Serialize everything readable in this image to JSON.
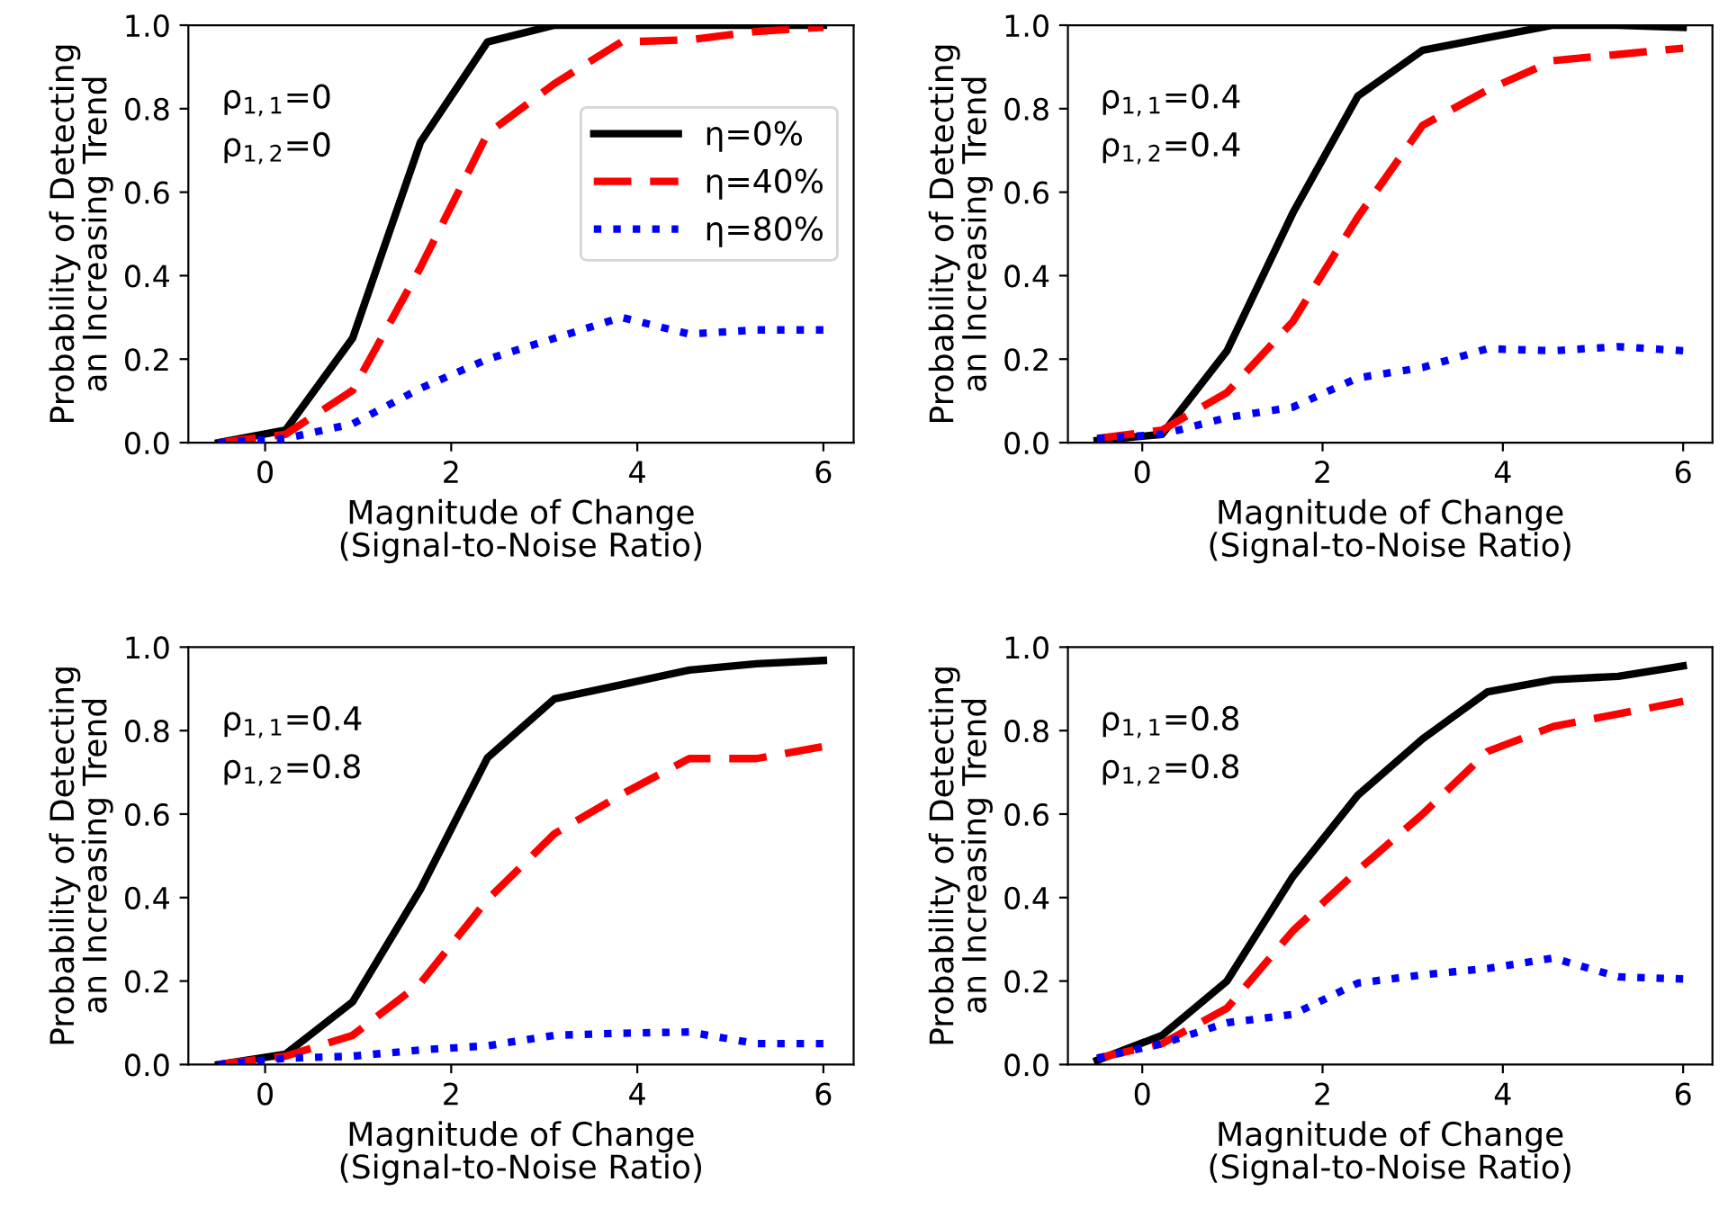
{
  "chart_data": [
    {
      "type": "line",
      "xlabel": "Magnitude of Change\n(Signal-to-Noise Ratio)",
      "ylabel": "Probability of Detecting\nan Increasing Trend",
      "x": [
        -0.5,
        0.22,
        0.94,
        1.67,
        2.39,
        3.11,
        3.83,
        4.56,
        5.28,
        6.0
      ],
      "xlim": [
        -0.825,
        6.325
      ],
      "ylim": [
        0,
        1
      ],
      "xticks": [
        0,
        2,
        4,
        6
      ],
      "yticks": [
        {
          "value": 0,
          "label": "0.0"
        },
        {
          "value": 0.2,
          "label": "0.2"
        },
        {
          "value": 0.4,
          "label": "0.4"
        },
        {
          "value": 0.6,
          "label": "0.6"
        },
        {
          "value": 0.8,
          "label": "0.8"
        },
        {
          "value": 1,
          "label": "1.0"
        }
      ],
      "annotations": [
        "ρ$_{1,1}$=0",
        "ρ$_{1,2}$=0"
      ],
      "legend": "right",
      "grid": false,
      "series": [
        {
          "name": "η=0%",
          "color": "#000000",
          "line_style": "solid",
          "values": [
            0,
            0.03,
            0.25,
            0.72,
            0.96,
            1.0,
            1.0,
            1.0,
            1.0,
            1.0
          ]
        },
        {
          "name": "η=40%",
          "color": "#ff0000",
          "line_style": "dashed",
          "values": [
            0,
            0.02,
            0.125,
            0.42,
            0.74,
            0.86,
            0.96,
            0.965,
            0.985,
            0.995
          ]
        },
        {
          "name": "η=80%",
          "color": "#0000ff",
          "line_style": "dotted",
          "values": [
            0,
            0.01,
            0.045,
            0.13,
            0.2,
            0.25,
            0.3,
            0.26,
            0.27,
            0.27
          ]
        }
      ]
    },
    {
      "type": "line",
      "xlabel": "Magnitude of Change\n(Signal-to-Noise Ratio)",
      "ylabel": "Probability of Detecting\nan Increasing Trend",
      "x": [
        -0.5,
        0.22,
        0.94,
        1.67,
        2.39,
        3.11,
        3.83,
        4.56,
        5.28,
        6.0
      ],
      "xlim": [
        -0.825,
        6.325
      ],
      "ylim": [
        0,
        1
      ],
      "xticks": [
        0,
        2,
        4,
        6
      ],
      "yticks": [
        {
          "value": 0,
          "label": "0.0"
        },
        {
          "value": 0.2,
          "label": "0.2"
        },
        {
          "value": 0.4,
          "label": "0.4"
        },
        {
          "value": 0.6,
          "label": "0.6"
        },
        {
          "value": 0.8,
          "label": "0.8"
        },
        {
          "value": 1,
          "label": "1.0"
        }
      ],
      "annotations": [
        "ρ$_{1,1}$=0.4",
        "ρ$_{1,2}$=0.4"
      ],
      "grid": false,
      "series": [
        {
          "color": "#000000",
          "line_style": "solid",
          "values": [
            0.005,
            0.02,
            0.22,
            0.55,
            0.83,
            0.94,
            0.97,
            1.0,
            1.0,
            0.995
          ]
        },
        {
          "color": "#ff0000",
          "line_style": "dashed",
          "values": [
            0.01,
            0.03,
            0.12,
            0.29,
            0.54,
            0.76,
            0.845,
            0.915,
            0.93,
            0.945
          ]
        },
        {
          "color": "#0000ff",
          "line_style": "dotted",
          "values": [
            0.01,
            0.02,
            0.06,
            0.085,
            0.155,
            0.18,
            0.225,
            0.22,
            0.23,
            0.22
          ]
        }
      ]
    },
    {
      "type": "line",
      "xlabel": "Magnitude of Change\n(Signal-to-Noise Ratio)",
      "ylabel": "Probability of Detecting\nan Increasing Trend",
      "x": [
        -0.5,
        0.22,
        0.94,
        1.67,
        2.39,
        3.11,
        3.83,
        4.56,
        5.28,
        6.0
      ],
      "xlim": [
        -0.825,
        6.325
      ],
      "ylim": [
        0,
        1
      ],
      "xticks": [
        0,
        2,
        4,
        6
      ],
      "yticks": [
        {
          "value": 0,
          "label": "0.0"
        },
        {
          "value": 0.2,
          "label": "0.2"
        },
        {
          "value": 0.4,
          "label": "0.4"
        },
        {
          "value": 0.6,
          "label": "0.6"
        },
        {
          "value": 0.8,
          "label": "0.8"
        },
        {
          "value": 1,
          "label": "1.0"
        }
      ],
      "annotations": [
        "ρ$_{1,1}$=0.4",
        "ρ$_{1,2}$=0.8"
      ],
      "grid": false,
      "series": [
        {
          "color": "#000000",
          "line_style": "solid",
          "values": [
            0,
            0.025,
            0.15,
            0.42,
            0.735,
            0.876,
            0.91,
            0.945,
            0.96,
            0.968
          ]
        },
        {
          "color": "#ff0000",
          "line_style": "dashed",
          "values": [
            0,
            0.02,
            0.07,
            0.195,
            0.395,
            0.553,
            0.647,
            0.733,
            0.733,
            0.762
          ]
        },
        {
          "color": "#0000ff",
          "line_style": "dotted",
          "values": [
            0,
            0.015,
            0.02,
            0.035,
            0.045,
            0.07,
            0.075,
            0.078,
            0.05,
            0.05
          ]
        }
      ]
    },
    {
      "type": "line",
      "xlabel": "Magnitude of Change\n(Signal-to-Noise Ratio)",
      "ylabel": "Probability of Detecting\nan Increasing Trend",
      "x": [
        -0.5,
        0.22,
        0.94,
        1.67,
        2.39,
        3.11,
        3.83,
        4.56,
        5.28,
        6.0
      ],
      "xlim": [
        -0.825,
        6.325
      ],
      "ylim": [
        0,
        1
      ],
      "xticks": [
        0,
        2,
        4,
        6
      ],
      "yticks": [
        {
          "value": 0,
          "label": "0.0"
        },
        {
          "value": 0.2,
          "label": "0.2"
        },
        {
          "value": 0.4,
          "label": "0.4"
        },
        {
          "value": 0.6,
          "label": "0.6"
        },
        {
          "value": 0.8,
          "label": "0.8"
        },
        {
          "value": 1,
          "label": "1.0"
        }
      ],
      "annotations": [
        "ρ$_{1,1}$=0.8",
        "ρ$_{1,2}$=0.8"
      ],
      "grid": false,
      "series": [
        {
          "color": "#000000",
          "line_style": "solid",
          "values": [
            0.01,
            0.07,
            0.2,
            0.45,
            0.645,
            0.78,
            0.893,
            0.922,
            0.93,
            0.955
          ]
        },
        {
          "color": "#ff0000",
          "line_style": "dashed",
          "values": [
            0.015,
            0.05,
            0.135,
            0.32,
            0.465,
            0.6,
            0.75,
            0.81,
            0.84,
            0.87
          ]
        },
        {
          "color": "#0000ff",
          "line_style": "dotted",
          "values": [
            0.015,
            0.05,
            0.1,
            0.12,
            0.195,
            0.215,
            0.23,
            0.255,
            0.21,
            0.205
          ]
        }
      ]
    }
  ]
}
